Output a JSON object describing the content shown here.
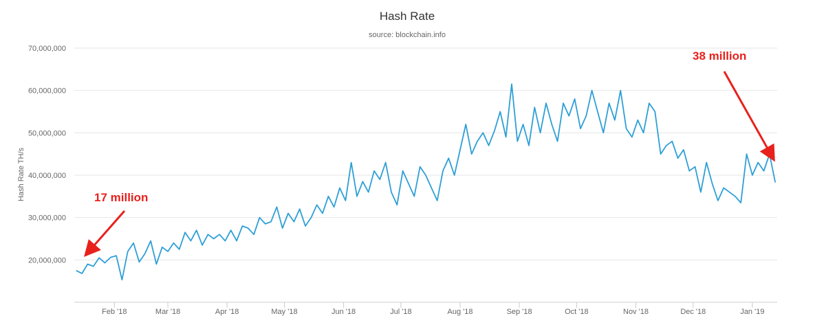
{
  "chart_data": {
    "type": "line",
    "title": "Hash Rate",
    "subtitle": "source: blockchain.info",
    "ylabel": "Hash Rate TH/s",
    "xlabel": "",
    "ylim": [
      10000000,
      70000000
    ],
    "xlim": [
      "2018-01-11",
      "2019-01-14"
    ],
    "y_ticks": [
      20000000,
      30000000,
      40000000,
      50000000,
      60000000,
      70000000
    ],
    "y_tick_labels": [
      "20,000,000",
      "30,000,000",
      "40,000,000",
      "50,000,000",
      "60,000,000",
      "70,000,000"
    ],
    "x_ticks": [
      "2018-02-01",
      "2018-03-01",
      "2018-04-01",
      "2018-05-01",
      "2018-06-01",
      "2018-07-01",
      "2018-08-01",
      "2018-09-01",
      "2018-10-01",
      "2018-11-01",
      "2018-12-01",
      "2019-01-01"
    ],
    "x_tick_labels": [
      "Feb '18",
      "Mar '18",
      "Apr '18",
      "May '18",
      "Jun '18",
      "Jul '18",
      "Aug '18",
      "Sep '18",
      "Oct '18",
      "Nov '18",
      "Dec '18",
      "Jan '19"
    ],
    "grid": true,
    "legend": "none",
    "series": [
      {
        "color": "#2d9fd6",
        "x": [
          "2018-01-12",
          "2018-01-15",
          "2018-01-18",
          "2018-01-21",
          "2018-01-24",
          "2018-01-27",
          "2018-01-30",
          "2018-02-02",
          "2018-02-05",
          "2018-02-08",
          "2018-02-11",
          "2018-02-14",
          "2018-02-17",
          "2018-02-20",
          "2018-02-23",
          "2018-02-26",
          "2018-03-01",
          "2018-03-04",
          "2018-03-07",
          "2018-03-10",
          "2018-03-13",
          "2018-03-16",
          "2018-03-19",
          "2018-03-22",
          "2018-03-25",
          "2018-03-28",
          "2018-03-31",
          "2018-04-03",
          "2018-04-06",
          "2018-04-09",
          "2018-04-12",
          "2018-04-15",
          "2018-04-18",
          "2018-04-21",
          "2018-04-24",
          "2018-04-27",
          "2018-04-30",
          "2018-05-03",
          "2018-05-06",
          "2018-05-09",
          "2018-05-12",
          "2018-05-15",
          "2018-05-18",
          "2018-05-21",
          "2018-05-24",
          "2018-05-27",
          "2018-05-30",
          "2018-06-02",
          "2018-06-05",
          "2018-06-08",
          "2018-06-11",
          "2018-06-14",
          "2018-06-17",
          "2018-06-20",
          "2018-06-23",
          "2018-06-26",
          "2018-06-29",
          "2018-07-02",
          "2018-07-05",
          "2018-07-08",
          "2018-07-11",
          "2018-07-14",
          "2018-07-17",
          "2018-07-20",
          "2018-07-23",
          "2018-07-26",
          "2018-07-29",
          "2018-08-01",
          "2018-08-04",
          "2018-08-07",
          "2018-08-10",
          "2018-08-13",
          "2018-08-16",
          "2018-08-19",
          "2018-08-22",
          "2018-08-25",
          "2018-08-28",
          "2018-08-31",
          "2018-09-03",
          "2018-09-06",
          "2018-09-09",
          "2018-09-12",
          "2018-09-15",
          "2018-09-18",
          "2018-09-21",
          "2018-09-24",
          "2018-09-27",
          "2018-09-30",
          "2018-10-03",
          "2018-10-06",
          "2018-10-09",
          "2018-10-12",
          "2018-10-15",
          "2018-10-18",
          "2018-10-21",
          "2018-10-24",
          "2018-10-27",
          "2018-10-30",
          "2018-11-02",
          "2018-11-05",
          "2018-11-08",
          "2018-11-11",
          "2018-11-14",
          "2018-11-17",
          "2018-11-20",
          "2018-11-23",
          "2018-11-26",
          "2018-11-29",
          "2018-12-02",
          "2018-12-05",
          "2018-12-08",
          "2018-12-11",
          "2018-12-14",
          "2018-12-17",
          "2018-12-20",
          "2018-12-23",
          "2018-12-26",
          "2018-12-29",
          "2019-01-01",
          "2019-01-04",
          "2019-01-07",
          "2019-01-10",
          "2019-01-13"
        ],
        "values": [
          17500000,
          16800000,
          19000000,
          18500000,
          20500000,
          19300000,
          20600000,
          21000000,
          15300000,
          22000000,
          24000000,
          19500000,
          21500000,
          24500000,
          19000000,
          23000000,
          22000000,
          24000000,
          22500000,
          26500000,
          24500000,
          27000000,
          23500000,
          26000000,
          25000000,
          26000000,
          24500000,
          27000000,
          24500000,
          28000000,
          27500000,
          26000000,
          30000000,
          28500000,
          29000000,
          32500000,
          27500000,
          31000000,
          29000000,
          32000000,
          28000000,
          30000000,
          33000000,
          31000000,
          35000000,
          32500000,
          37000000,
          34000000,
          43000000,
          35000000,
          38500000,
          36000000,
          41000000,
          39000000,
          43000000,
          36000000,
          33000000,
          41000000,
          38000000,
          35000000,
          42000000,
          40000000,
          37000000,
          34000000,
          41000000,
          44000000,
          40000000,
          46000000,
          52000000,
          45000000,
          48000000,
          50000000,
          47000000,
          50500000,
          55000000,
          49000000,
          61500000,
          48000000,
          52000000,
          47000000,
          56000000,
          50000000,
          57000000,
          52000000,
          48000000,
          57000000,
          54000000,
          58000000,
          51000000,
          54000000,
          60000000,
          55000000,
          50000000,
          57000000,
          53000000,
          60000000,
          51000000,
          49000000,
          53000000,
          50000000,
          57000000,
          55000000,
          45000000,
          47000000,
          48000000,
          44000000,
          46000000,
          41000000,
          42000000,
          36000000,
          43000000,
          38000000,
          34000000,
          37000000,
          36000000,
          35000000,
          33500000,
          45000000,
          40000000,
          43000000,
          41000000,
          45000000,
          38300000
        ]
      }
    ],
    "annotations": [
      {
        "label": "17 million"
      },
      {
        "label": "38 million"
      }
    ]
  }
}
